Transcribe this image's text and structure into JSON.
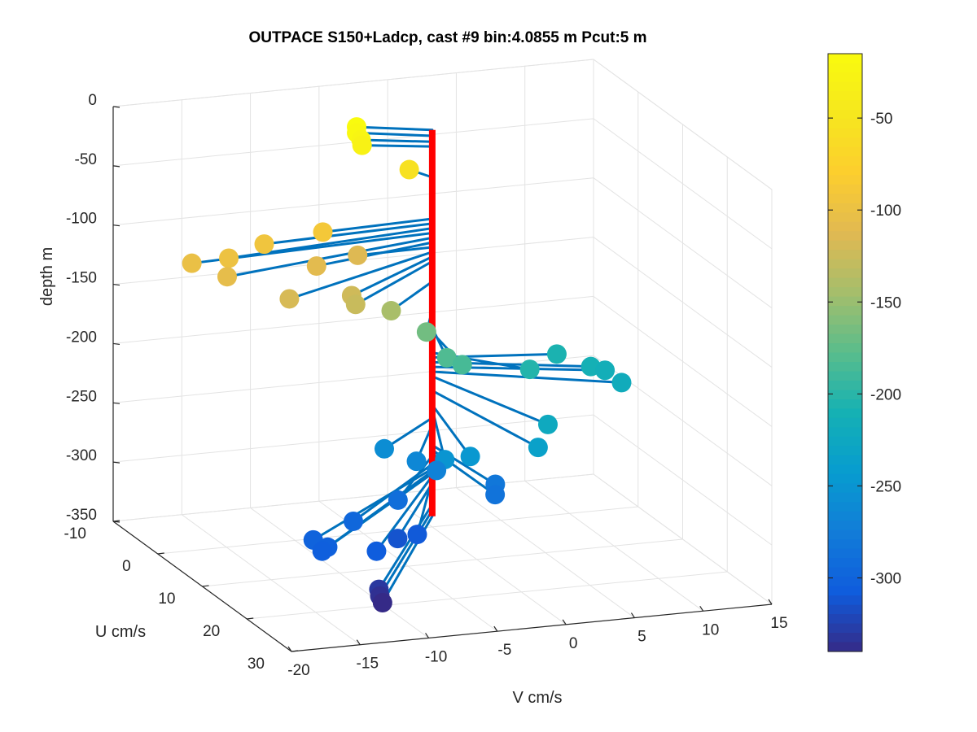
{
  "chart_data": {
    "type": "scatter",
    "title": "OUTPACE S150+Ladcp, cast #9 bin:4.0855 m  Pcut:5 m",
    "xlabel": "V cm/s",
    "ylabel": "U cm/s",
    "zlabel": "depth m",
    "xlim": [
      -20,
      15
    ],
    "ylim": [
      -10,
      30
    ],
    "zlim": [
      -350,
      0
    ],
    "x_ticks": [
      "-20",
      "-15",
      "-10",
      "-5",
      "0",
      "5",
      "10",
      "15"
    ],
    "y_ticks": [
      "-10",
      "0",
      "10",
      "20",
      "30"
    ],
    "z_ticks": [
      "0",
      "-50",
      "-100",
      "-150",
      "-200",
      "-250",
      "-300",
      "-350"
    ],
    "grid": true,
    "colorbar": {
      "colormap": "parula",
      "range": [
        -340,
        -15
      ],
      "ticks": [
        "-50",
        "-100",
        "-150",
        "-200",
        "-250",
        "-300"
      ]
    },
    "profile_color": "#ff0000",
    "stick_color": "#0072bd",
    "points": [
      {
        "v": -4.6,
        "u": -2.8,
        "depth": -15
      },
      {
        "v": -4.6,
        "u": -2.8,
        "depth": -20
      },
      {
        "v": -4.4,
        "u": -2.4,
        "depth": -25
      },
      {
        "v": -4.4,
        "u": -2.2,
        "depth": -29
      },
      {
        "v": -0.8,
        "u": -2.7,
        "depth": -55
      },
      {
        "v": -8.2,
        "u": 0.7,
        "depth": -90
      },
      {
        "v": -12.6,
        "u": 1.1,
        "depth": -94
      },
      {
        "v": -15.7,
        "u": 2.7,
        "depth": -98
      },
      {
        "v": -18.1,
        "u": 1.8,
        "depth": -102
      },
      {
        "v": -16.6,
        "u": 5.1,
        "depth": -106
      },
      {
        "v": -9.5,
        "u": 3.3,
        "depth": -110
      },
      {
        "v": -5.5,
        "u": 0.2,
        "depth": -114
      },
      {
        "v": -13.3,
        "u": 8.9,
        "depth": -118
      },
      {
        "v": -8.6,
        "u": 8.4,
        "depth": -122
      },
      {
        "v": -8.7,
        "u": 9.6,
        "depth": -126
      },
      {
        "v": -5.2,
        "u": 6.8,
        "depth": -143
      },
      {
        "v": -2.3,
        "u": 5.8,
        "depth": -167
      },
      {
        "v": -1.7,
        "u": 8.5,
        "depth": -182
      },
      {
        "v": -0.9,
        "u": 9.5,
        "depth": -186
      },
      {
        "v": 4.8,
        "u": 7.1,
        "depth": -203
      },
      {
        "v": 8.3,
        "u": 2.4,
        "depth": -207
      },
      {
        "v": 9.8,
        "u": 5.4,
        "depth": -211
      },
      {
        "v": 10.8,
        "u": 5.5,
        "depth": -215
      },
      {
        "v": 11.2,
        "u": 8.0,
        "depth": -219
      },
      {
        "v": 3.2,
        "u": 16.1,
        "depth": -223
      },
      {
        "v": 1.8,
        "u": 18.2,
        "depth": -235
      },
      {
        "v": -2.1,
        "u": 15.0,
        "depth": -247
      },
      {
        "v": -3.7,
        "u": 14.2,
        "depth": -250
      },
      {
        "v": -5.8,
        "u": 7.1,
        "depth": -258
      },
      {
        "v": -4.2,
        "u": 9.4,
        "depth": -264
      },
      {
        "v": -3.1,
        "u": 10.5,
        "depth": -270
      },
      {
        "v": 0.6,
        "u": 12.3,
        "depth": -281
      },
      {
        "v": 0.1,
        "u": 13.8,
        "depth": -285
      },
      {
        "v": -6.1,
        "u": 11.1,
        "depth": -290
      },
      {
        "v": -10.1,
        "u": 13.4,
        "depth": -297
      },
      {
        "v": -13.9,
        "u": 16.1,
        "depth": -301
      },
      {
        "v": -13.4,
        "u": 17.8,
        "depth": -303
      },
      {
        "v": -13.9,
        "u": 18.1,
        "depth": -305
      },
      {
        "v": -10.2,
        "u": 18.9,
        "depth": -307
      },
      {
        "v": -5.9,
        "u": 14.8,
        "depth": -309
      },
      {
        "v": -7.1,
        "u": 14.1,
        "depth": -313
      },
      {
        "v": -10.9,
        "u": 21.6,
        "depth": -331
      },
      {
        "v": -10.9,
        "u": 21.8,
        "depth": -336
      },
      {
        "v": -10.8,
        "u": 22.1,
        "depth": -341
      }
    ]
  }
}
